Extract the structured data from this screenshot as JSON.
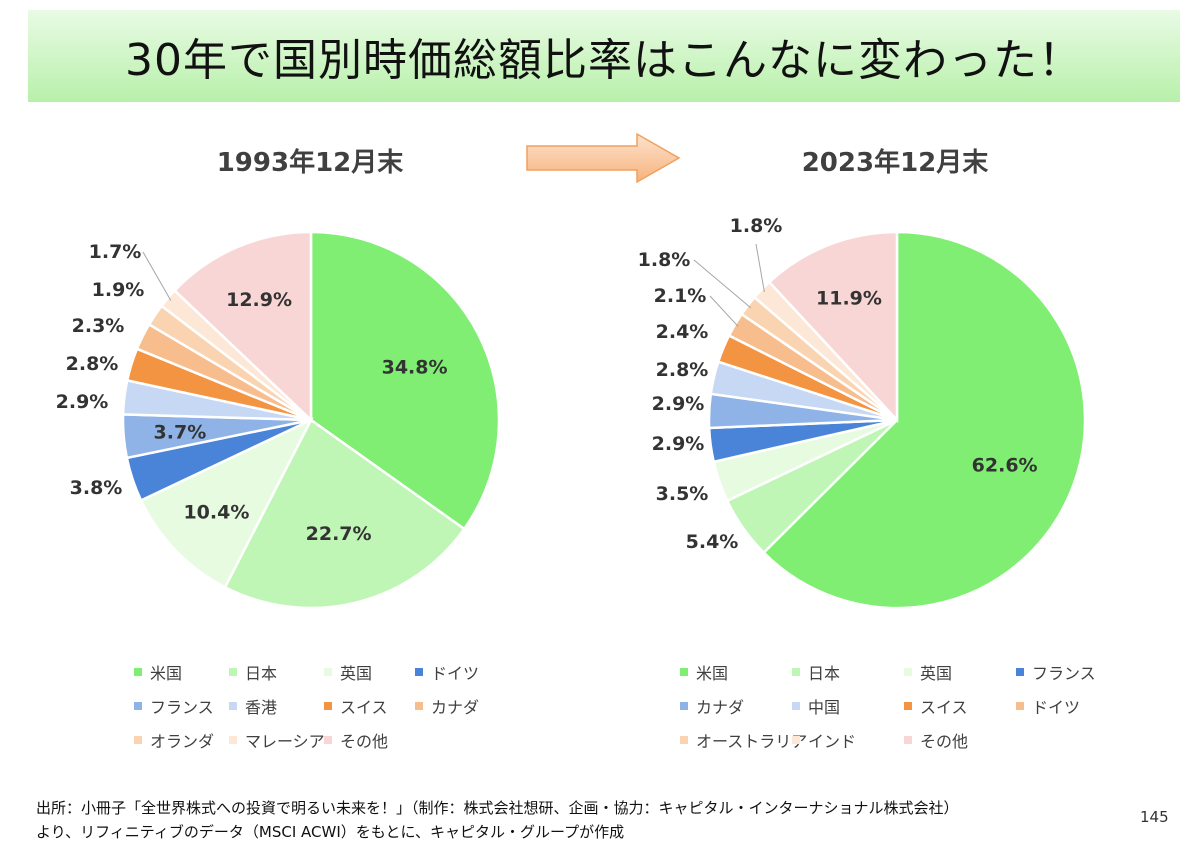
{
  "title": "30年で国別時価総額比率はこんなに変わった！",
  "page_number": "145",
  "footer": {
    "line1": "出所：小冊子「全世界株式への投資で明るい未来を！」（制作：株式会社想研、企画・協力：キャピタル・インターナショナル株式会社）",
    "line2": "より、リフィニティブのデータ（MSCI ACWI）をもとに、キャピタル・グループが作成"
  },
  "chart_data": [
    {
      "type": "pie",
      "title": "1993年12月末",
      "unit": "%",
      "slices": [
        {
          "name": "米国",
          "value": 34.8,
          "label": "34.8%",
          "color": "#7fee73"
        },
        {
          "name": "日本",
          "value": 22.7,
          "label": "22.7%",
          "color": "#bff6b5"
        },
        {
          "name": "英国",
          "value": 10.4,
          "label": "10.4%",
          "color": "#e7fbe1"
        },
        {
          "name": "ドイツ",
          "value": 3.8,
          "label": "3.8%",
          "color": "#4a84d8"
        },
        {
          "name": "フランス",
          "value": 3.7,
          "label": "3.7%",
          "color": "#8fb3e6"
        },
        {
          "name": "香港",
          "value": 2.9,
          "label": "2.9%",
          "color": "#c6d8f3"
        },
        {
          "name": "スイス",
          "value": 2.8,
          "label": "2.8%",
          "color": "#f39442"
        },
        {
          "name": "カナダ",
          "value": 2.3,
          "label": "2.3%",
          "color": "#f7bd8c"
        },
        {
          "name": "オランダ",
          "value": 1.9,
          "label": "1.9%",
          "color": "#fad3b1"
        },
        {
          "name": "マレーシア",
          "value": 1.7,
          "label": "1.7%",
          "color": "#fde7d7"
        },
        {
          "name": "その他",
          "value": 12.9,
          "label": "12.9%",
          "color": "#f9d6d6"
        }
      ]
    },
    {
      "type": "pie",
      "title": "2023年12月末",
      "unit": "%",
      "slices": [
        {
          "name": "米国",
          "value": 62.6,
          "label": "62.6%",
          "color": "#7fee73"
        },
        {
          "name": "日本",
          "value": 5.4,
          "label": "5.4%",
          "color": "#bff6b5"
        },
        {
          "name": "英国",
          "value": 3.5,
          "label": "3.5%",
          "color": "#e7fbe1"
        },
        {
          "name": "フランス",
          "value": 2.9,
          "label": "2.9%",
          "color": "#4a84d8"
        },
        {
          "name": "カナダ",
          "value": 2.9,
          "label": "2.9%",
          "color": "#8fb3e6"
        },
        {
          "name": "中国",
          "value": 2.8,
          "label": "2.8%",
          "color": "#c6d8f3"
        },
        {
          "name": "スイス",
          "value": 2.4,
          "label": "2.4%",
          "color": "#f39442"
        },
        {
          "name": "ドイツ",
          "value": 2.1,
          "label": "2.1%",
          "color": "#f7bd8c"
        },
        {
          "name": "オーストラリア",
          "value": 1.8,
          "label": "1.8%",
          "color": "#fad3b1"
        },
        {
          "name": "インド",
          "value": 1.8,
          "label": "1.8%",
          "color": "#fde7d7"
        },
        {
          "name": "その他",
          "value": 11.9,
          "label": "11.9%",
          "color": "#f9d6d6"
        }
      ]
    }
  ],
  "arrow_icon": "right-arrow-icon"
}
